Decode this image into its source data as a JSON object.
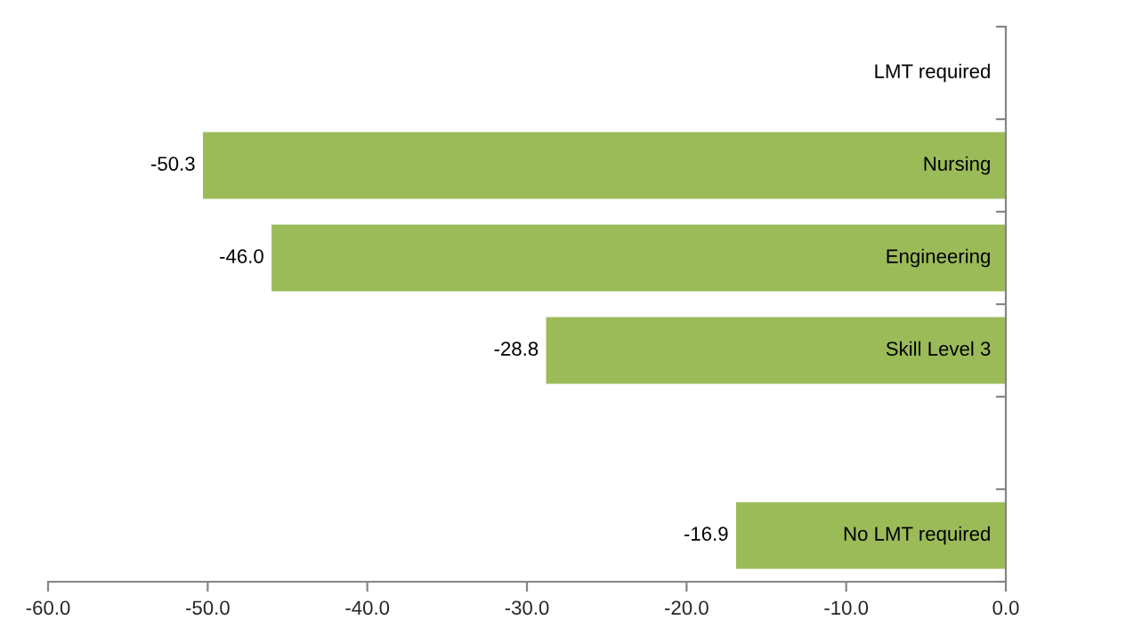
{
  "chart_data": {
    "type": "bar",
    "orientation": "horizontal",
    "categories": [
      "LMT required",
      "Nursing",
      "Engineering",
      "Skill Level 3",
      null,
      "No LMT required"
    ],
    "values": [
      null,
      -50.3,
      -46.0,
      -28.8,
      null,
      -16.9
    ],
    "color": "#9bbb59",
    "xlim": [
      -60,
      0
    ],
    "xticks": [
      {
        "value": -60,
        "label": "-60.0"
      },
      {
        "value": -50,
        "label": "-50.0"
      },
      {
        "value": -40,
        "label": "-40.0"
      },
      {
        "value": -30,
        "label": "-30.0"
      },
      {
        "value": -20,
        "label": "-20.0"
      },
      {
        "value": -10,
        "label": "-10.0"
      },
      {
        "value": 0,
        "label": "0.0"
      }
    ],
    "value_labels": [
      null,
      "-50.3",
      "-46.0",
      "-28.8",
      null,
      "-16.9"
    ],
    "grid": false,
    "legend": false
  }
}
